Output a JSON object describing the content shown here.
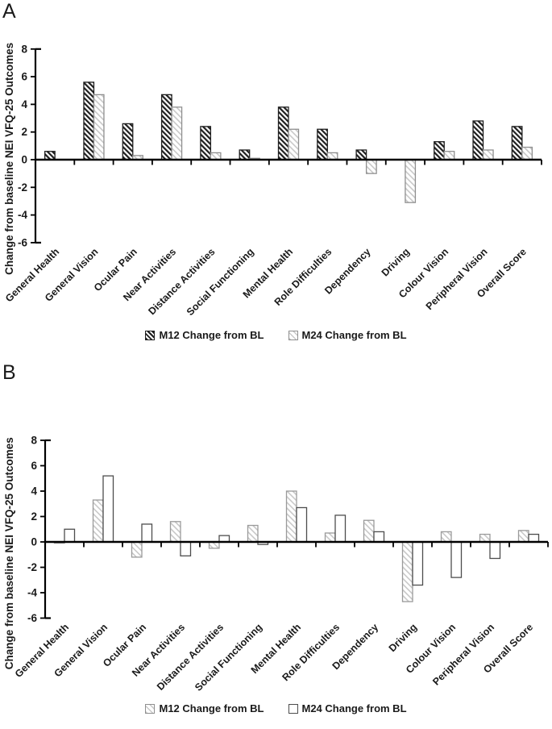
{
  "figure": {
    "background": "#ffffff",
    "panels": [
      {
        "letter": "A"
      },
      {
        "letter": "B"
      }
    ]
  },
  "chart_data": [
    {
      "type": "bar",
      "panel": "A",
      "title": "",
      "xlabel": "",
      "ylabel": "Change from baseline NEI VFQ-25 Outcomes",
      "ylim": [
        -6,
        8
      ],
      "yticks": [
        8,
        6,
        4,
        2,
        0,
        -2,
        -4,
        -6
      ],
      "grid": false,
      "legend_position": "bottom",
      "categories": [
        "General Health",
        "General Vision",
        "Ocular Pain",
        "Near Activities",
        "Distance Activities",
        "Social Functioning",
        "Mental Health",
        "Role Difficulties",
        "Dependency",
        "Driving",
        "Colour Vision",
        "Peripheral Vision",
        "Overall Score"
      ],
      "series": [
        {
          "name": "M12 Change from BL",
          "pattern": "dark-diagonal-hatch",
          "hatch_color": "#1f1f1f",
          "border_color": "#1f1f1f",
          "values": [
            0.6,
            5.6,
            2.6,
            4.7,
            2.4,
            0.7,
            3.8,
            2.2,
            0.7,
            0,
            1.3,
            2.8,
            2.4
          ]
        },
        {
          "name": "M24 Change from BL",
          "pattern": "light-diagonal-hatch",
          "hatch_color": "#c8c8c8",
          "border_color": "#8f8f8f",
          "values": [
            0,
            4.7,
            0.3,
            3.8,
            0.5,
            0.1,
            2.2,
            0.5,
            -1.0,
            -3.1,
            0.6,
            0.7,
            0.9
          ]
        }
      ]
    },
    {
      "type": "bar",
      "panel": "B",
      "title": "",
      "xlabel": "",
      "ylabel": "Change from baseline NEI VFQ-25 Outcomes",
      "ylim": [
        -6,
        8
      ],
      "yticks": [
        8,
        6,
        4,
        2,
        0,
        -2,
        -4,
        -6
      ],
      "grid": false,
      "legend_position": "bottom",
      "categories": [
        "General Health",
        "General Vision",
        "Ocular Pain",
        "Near Activities",
        "Distance Activities",
        "Social Functioning",
        "Mental Health",
        "Role Difficulties",
        "Dependency",
        "Driving",
        "Colour Vision",
        "Peripheral Vision",
        "Overall Score"
      ],
      "series": [
        {
          "name": "M12 Change from BL",
          "pattern": "light-diagonal-hatch",
          "hatch_color": "#c8c8c8",
          "border_color": "#9a9a9a",
          "values": [
            -0.1,
            3.3,
            -1.2,
            1.6,
            -0.5,
            1.3,
            4.0,
            0.7,
            1.7,
            -4.7,
            0.8,
            0.6,
            0.9
          ]
        },
        {
          "name": "M24 Change from BL",
          "pattern": "white",
          "fill_color": "#ffffff",
          "border_color": "#4d4d4d",
          "values": [
            1.0,
            5.2,
            1.4,
            -1.1,
            0.5,
            -0.2,
            2.7,
            2.1,
            0.8,
            -3.4,
            -2.8,
            -1.3,
            0.6
          ]
        }
      ]
    }
  ]
}
